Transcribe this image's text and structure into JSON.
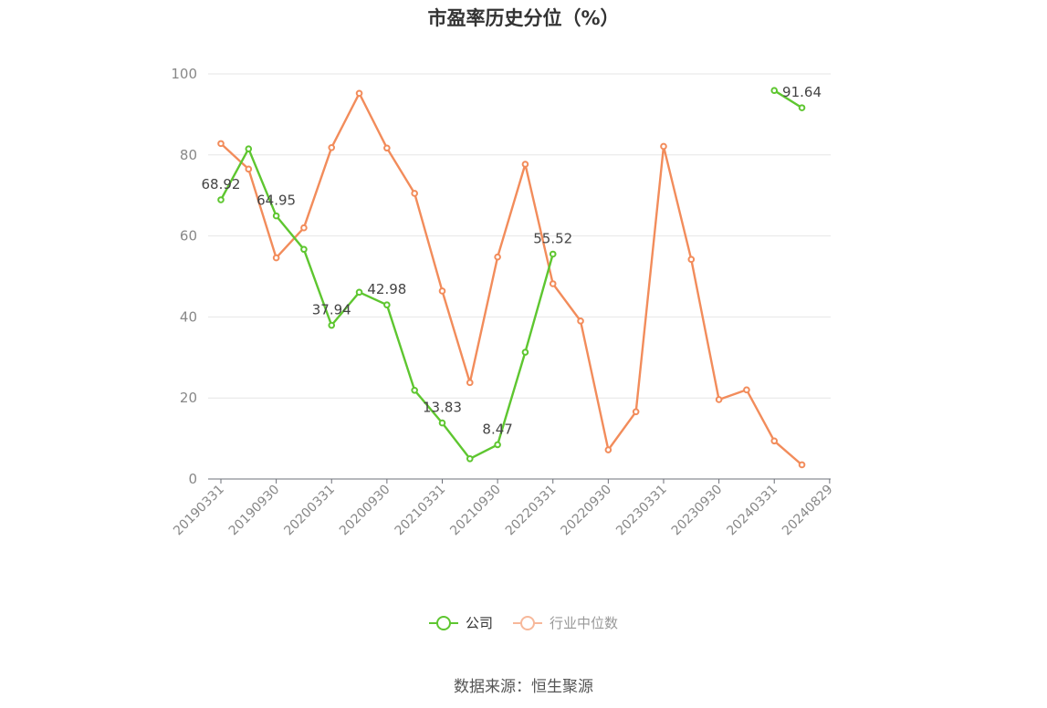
{
  "chart_data": {
    "type": "line",
    "title": "市盈率历史分位（%）",
    "x": [
      "20190331",
      "20190630",
      "20190930",
      "20191231",
      "20200331",
      "20200630",
      "20200930",
      "20201231",
      "20210331",
      "20210630",
      "20210930",
      "20211231",
      "20220331",
      "20220630",
      "20220930",
      "20221231",
      "20230331",
      "20230630",
      "20230930",
      "20231231",
      "20240331",
      "20240630",
      "20240829"
    ],
    "xticks": [
      "20190331",
      "20190930",
      "20200331",
      "20200930",
      "20210331",
      "20210930",
      "20220331",
      "20220930",
      "20230331",
      "20230930",
      "20240331",
      "20240829"
    ],
    "ylim": [
      0,
      100
    ],
    "yticks": [
      0,
      20,
      40,
      60,
      80,
      100
    ],
    "grid": true,
    "legend_position": "bottom",
    "series": [
      {
        "name": "公司",
        "color": "#5ec630",
        "values": [
          68.92,
          81.5,
          64.95,
          56.7,
          37.94,
          46.1,
          42.98,
          21.9,
          13.83,
          5.0,
          8.47,
          31.3,
          55.52,
          null,
          null,
          null,
          null,
          null,
          null,
          null,
          95.9,
          91.64,
          null
        ],
        "labels": {
          "0": "68.92",
          "2": "64.95",
          "4": "37.94",
          "6": "42.98",
          "8": "13.83",
          "10": "8.47",
          "12": "55.52",
          "21": "91.64"
        }
      },
      {
        "name": "行业中位数",
        "color": "#f28c5b",
        "values": [
          82.8,
          76.5,
          54.6,
          62.0,
          81.8,
          95.2,
          81.7,
          70.5,
          46.4,
          23.8,
          54.8,
          77.7,
          48.2,
          39.0,
          7.2,
          16.6,
          82.1,
          54.2,
          19.6,
          22.0,
          9.4,
          3.5,
          null
        ]
      }
    ]
  },
  "legend": {
    "items": [
      {
        "label": "公司",
        "color": "#5ec630",
        "text_color": "#333333"
      },
      {
        "label": "行业中位数",
        "color": "#f7b89a",
        "text_color": "#999999"
      }
    ]
  },
  "source": "数据来源：恒生聚源"
}
